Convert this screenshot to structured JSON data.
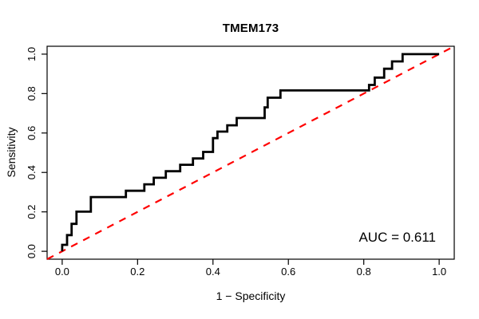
{
  "chart_data": {
    "type": "line",
    "subtype": "roc-step-curve",
    "title": "TMEM173",
    "xlabel": "1 − Specificity",
    "ylabel": "Sensitivity",
    "x_ticks": [
      "0.0",
      "0.2",
      "0.4",
      "0.6",
      "0.8",
      "1.0"
    ],
    "y_ticks": [
      "0.0",
      "0.2",
      "0.4",
      "0.6",
      "0.8",
      "1.0"
    ],
    "xlim": [
      0,
      1
    ],
    "ylim": [
      0,
      1
    ],
    "axis_padding_fraction": 0.04,
    "grid": false,
    "legend": false,
    "background_color": "#ffffff",
    "box_color": "#000000",
    "series": [
      {
        "name": "chance diagonal",
        "style": "dashed",
        "color": "#ff0000",
        "width": 2.2,
        "dash": "9,8",
        "extend_full_box": true,
        "points": [
          [
            0,
            0
          ],
          [
            1,
            1
          ]
        ]
      },
      {
        "name": "ROC curve",
        "style": "step",
        "color": "#000000",
        "width": 2.8,
        "dash": null,
        "extend_full_box": false,
        "points": [
          [
            0,
            0
          ],
          [
            0,
            0.033
          ],
          [
            0.013,
            0.033
          ],
          [
            0.013,
            0.082
          ],
          [
            0.025,
            0.082
          ],
          [
            0.025,
            0.139
          ],
          [
            0.038,
            0.139
          ],
          [
            0.038,
            0.201
          ],
          [
            0.076,
            0.201
          ],
          [
            0.076,
            0.275
          ],
          [
            0.169,
            0.275
          ],
          [
            0.169,
            0.307
          ],
          [
            0.218,
            0.307
          ],
          [
            0.218,
            0.34
          ],
          [
            0.243,
            0.34
          ],
          [
            0.243,
            0.373
          ],
          [
            0.275,
            0.373
          ],
          [
            0.275,
            0.406
          ],
          [
            0.313,
            0.406
          ],
          [
            0.313,
            0.439
          ],
          [
            0.347,
            0.439
          ],
          [
            0.347,
            0.471
          ],
          [
            0.374,
            0.471
          ],
          [
            0.374,
            0.504
          ],
          [
            0.4,
            0.504
          ],
          [
            0.4,
            0.574
          ],
          [
            0.412,
            0.574
          ],
          [
            0.412,
            0.607
          ],
          [
            0.438,
            0.607
          ],
          [
            0.438,
            0.639
          ],
          [
            0.463,
            0.639
          ],
          [
            0.463,
            0.676
          ],
          [
            0.537,
            0.676
          ],
          [
            0.537,
            0.73
          ],
          [
            0.545,
            0.73
          ],
          [
            0.545,
            0.779
          ],
          [
            0.579,
            0.779
          ],
          [
            0.579,
            0.816
          ],
          [
            0.814,
            0.816
          ],
          [
            0.814,
            0.844
          ],
          [
            0.829,
            0.844
          ],
          [
            0.829,
            0.881
          ],
          [
            0.854,
            0.881
          ],
          [
            0.854,
            0.926
          ],
          [
            0.875,
            0.926
          ],
          [
            0.875,
            0.963
          ],
          [
            0.903,
            0.963
          ],
          [
            0.903,
            1
          ],
          [
            1,
            1
          ]
        ]
      }
    ],
    "annotations": [
      {
        "text": "AUC = 0.611"
      }
    ],
    "auc_value": 0.611
  }
}
